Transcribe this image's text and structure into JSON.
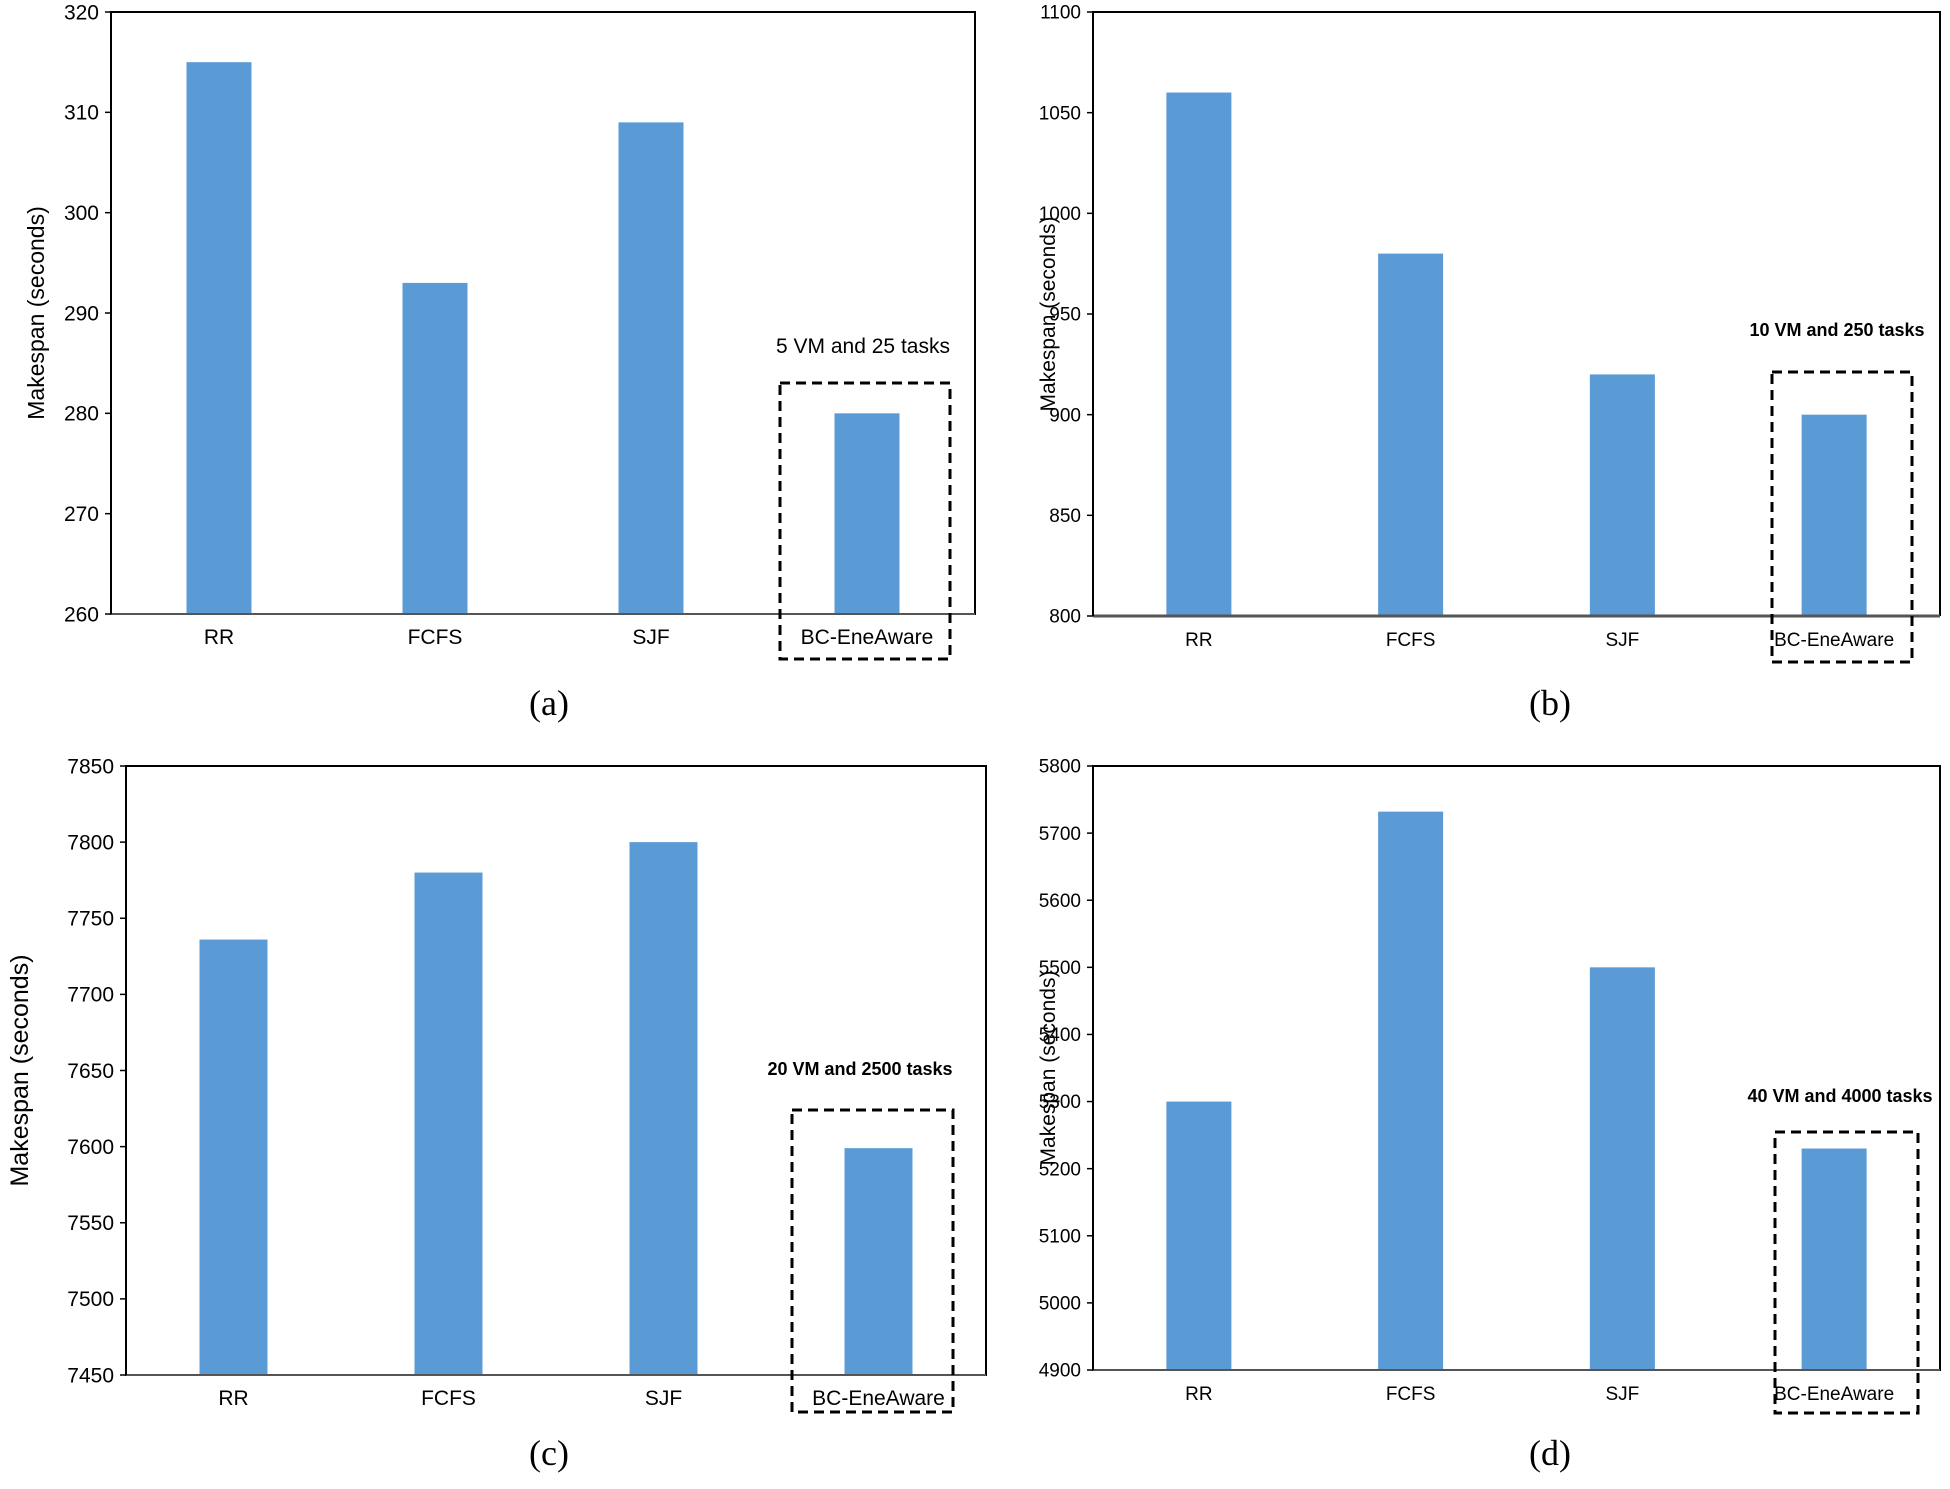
{
  "chart_data": [
    {
      "type": "bar",
      "id": "a",
      "caption": "(a)",
      "categories": [
        "RR",
        "FCFS",
        "SJF",
        "BC-EneAware"
      ],
      "values": [
        315,
        293,
        309,
        280
      ],
      "ylabel": "Makespan (seconds)",
      "xlabel": "",
      "ylim": [
        260,
        320
      ],
      "yticks": [
        260,
        270,
        280,
        290,
        300,
        310,
        320
      ],
      "annotation": "5 VM and 25 tasks",
      "annotation_bold": false,
      "highlight": "BC-EneAware",
      "color": "#5b9bd5"
    },
    {
      "type": "bar",
      "id": "b",
      "caption": "(b)",
      "categories": [
        "RR",
        "FCFS",
        "SJF",
        "BC-EneAware"
      ],
      "values": [
        1060,
        980,
        920,
        900
      ],
      "ylabel": "Makespan (seconds)",
      "xlabel": "",
      "ylim": [
        800,
        1100
      ],
      "yticks": [
        800,
        850,
        900,
        950,
        1000,
        1050,
        1100
      ],
      "annotation": "10 VM and 250 tasks",
      "annotation_bold": true,
      "highlight": "BC-EneAware",
      "color": "#5b9bd5"
    },
    {
      "type": "bar",
      "id": "c",
      "caption": "(c)",
      "categories": [
        "RR",
        "FCFS",
        "SJF",
        "BC-EneAware"
      ],
      "values": [
        7736,
        7780,
        7800,
        7599
      ],
      "ylabel": "Makespan (seconds)",
      "xlabel": "",
      "ylim": [
        7450,
        7850
      ],
      "yticks": [
        7450,
        7500,
        7550,
        7600,
        7650,
        7700,
        7750,
        7800,
        7850
      ],
      "annotation": "20 VM and 2500 tasks",
      "annotation_bold": true,
      "highlight": "BC-EneAware",
      "color": "#5b9bd5"
    },
    {
      "type": "bar",
      "id": "d",
      "caption": "(d)",
      "categories": [
        "RR",
        "FCFS",
        "SJF",
        "BC-EneAware"
      ],
      "values": [
        5300,
        5732,
        5500,
        5230
      ],
      "ylabel": "Makespan (seconds)",
      "xlabel": "",
      "ylim": [
        4900,
        5800
      ],
      "yticks": [
        4900,
        5000,
        5100,
        5200,
        5300,
        5400,
        5500,
        5600,
        5700,
        5800
      ],
      "annotation": "40 VM and 4000 tasks",
      "annotation_bold": true,
      "highlight": "BC-EneAware",
      "color": "#5b9bd5"
    }
  ]
}
